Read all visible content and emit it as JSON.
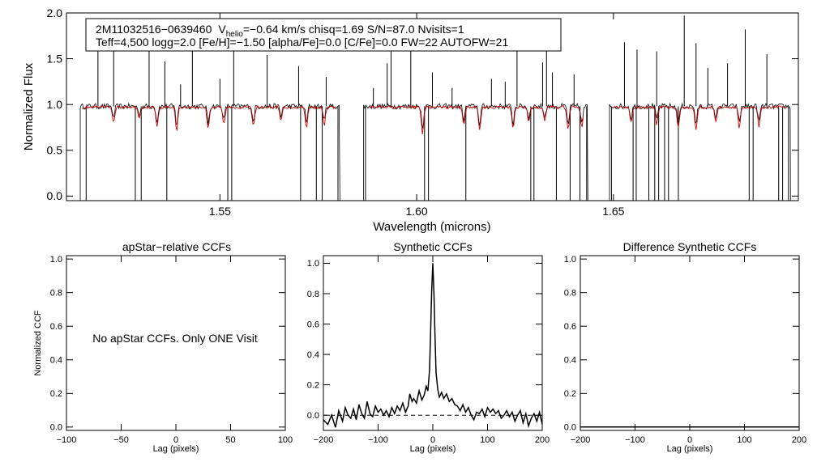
{
  "chart_data": [
    {
      "type": "line",
      "id": "spectrum",
      "xlabel": "Wavelength (microns)",
      "ylabel": "Normalized Flux",
      "xlim": [
        1.511,
        1.697
      ],
      "ylim": [
        -0.05,
        2.0
      ],
      "xticks": [
        1.55,
        1.6,
        1.65
      ],
      "xtick_labels": [
        "1.55",
        "1.60",
        "1.65"
      ],
      "yticks": [
        0.0,
        0.5,
        1.0,
        1.5,
        2.0
      ],
      "ytick_labels": [
        "0.0",
        "0.5",
        "1.0",
        "1.5",
        "2.0"
      ],
      "info_line1": {
        "star": "2M11032516−0639460",
        "v_prefix": "V",
        "v_sub": "helio",
        "v_rest": "=−0.64 km/s  chisq=1.69  S/N=87.0  Nvisits=1"
      },
      "info_line2": "Teff=4,500 logg=2.0 [Fe/H]=−1.50 [alpha/Fe]=0.0 [C/Fe]=0.0 FW=22 AUTOFW=21",
      "series": [
        {
          "name": "observed",
          "color": "#000000",
          "segments": [
            [
              1.5145,
              1.5805
            ],
            [
              1.5865,
              1.6435
            ],
            [
              1.649,
              1.695
            ]
          ],
          "continuum": 0.98,
          "absorption_lines": [
            [
              1.523,
              0.4
            ],
            [
              1.5295,
              0.3
            ],
            [
              1.534,
              0.5
            ],
            [
              1.539,
              0.6
            ],
            [
              1.547,
              0.55
            ],
            [
              1.551,
              0.45
            ],
            [
              1.5585,
              0.5
            ],
            [
              1.5655,
              0.35
            ],
            [
              1.572,
              0.55
            ],
            [
              1.5765,
              0.5
            ],
            [
              1.6015,
              0.7
            ],
            [
              1.612,
              0.45
            ],
            [
              1.616,
              0.6
            ],
            [
              1.6245,
              0.55
            ],
            [
              1.6285,
              0.4
            ],
            [
              1.6325,
              0.35
            ],
            [
              1.6385,
              0.6
            ],
            [
              1.642,
              0.55
            ],
            [
              1.6545,
              0.4
            ],
            [
              1.661,
              0.45
            ],
            [
              1.6665,
              0.55
            ],
            [
              1.671,
              0.6
            ],
            [
              1.676,
              0.4
            ],
            [
              1.682,
              0.55
            ],
            [
              1.687,
              0.5
            ]
          ],
          "drop_lines": [
            1.516,
            1.5285,
            1.53,
            1.5365,
            1.552,
            1.553,
            1.5705,
            1.5745,
            1.576,
            1.58,
            1.587,
            1.602,
            1.603,
            1.6125,
            1.629,
            1.6298,
            1.6355,
            1.639,
            1.6415,
            1.6432,
            1.6495,
            1.655,
            1.6558,
            1.659,
            1.6605,
            1.6615,
            1.663,
            1.664,
            1.6665,
            1.6845,
            1.6855,
            1.692,
            1.693,
            1.6945
          ],
          "emission_lines": [
            [
              1.519,
              1.82
            ],
            [
              1.523,
              1.78
            ],
            [
              1.532,
              1.73
            ],
            [
              1.536,
              1.47
            ],
            [
              1.54,
              1.22
            ],
            [
              1.543,
              1.62
            ],
            [
              1.55,
              1.28
            ],
            [
              1.5535,
              1.7
            ],
            [
              1.562,
              1.54
            ],
            [
              1.57,
              1.42
            ],
            [
              1.577,
              1.3
            ],
            [
              1.589,
              1.18
            ],
            [
              1.5925,
              1.45
            ],
            [
              1.5935,
              1.65
            ],
            [
              1.5985,
              1.78
            ],
            [
              1.604,
              1.35
            ],
            [
              1.609,
              1.18
            ],
            [
              1.619,
              1.28
            ],
            [
              1.6225,
              1.25
            ],
            [
              1.6255,
              1.62
            ],
            [
              1.632,
              1.46
            ],
            [
              1.633,
              1.75
            ],
            [
              1.6345,
              1.35
            ],
            [
              1.64,
              1.33
            ],
            [
              1.6528,
              1.68
            ],
            [
              1.656,
              1.6
            ],
            [
              1.661,
              1.58
            ],
            [
              1.668,
              1.97
            ],
            [
              1.671,
              1.67
            ],
            [
              1.674,
              1.4
            ],
            [
              1.679,
              1.45
            ],
            [
              1.6835,
              1.82
            ],
            [
              1.689,
              1.55
            ]
          ]
        },
        {
          "name": "synthetic",
          "color": "#cc0000",
          "segments": [
            [
              1.515,
              1.5795
            ],
            [
              1.588,
              1.6425
            ],
            [
              1.65,
              1.694
            ]
          ],
          "continuum": 0.97
        }
      ]
    },
    {
      "type": "line",
      "id": "apstar-ccf",
      "title": "apStar−relative CCFs",
      "ylabel": "Normalized CCF",
      "xlabel": "Lag (pixels)",
      "xlim": [
        -100,
        100
      ],
      "ylim": [
        -0.02,
        1.02
      ],
      "xticks": [
        -100,
        -50,
        0,
        50,
        100
      ],
      "xtick_labels": [
        "−100",
        "−50",
        "0",
        "50",
        "100"
      ],
      "yticks": [
        0.0,
        0.2,
        0.4,
        0.6,
        0.8,
        1.0
      ],
      "ytick_labels": [
        "0.0",
        "0.2",
        "0.4",
        "0.6",
        "0.8",
        "1.0"
      ],
      "annotation": "No apStar CCFs.  Only ONE Visit",
      "series": []
    },
    {
      "type": "line",
      "id": "synthetic-ccf",
      "title": "Synthetic CCFs",
      "xlabel": "Lag (pixels)",
      "xlim": [
        -200,
        200
      ],
      "ylim": [
        -0.1,
        1.05
      ],
      "xticks": [
        -200,
        -100,
        0,
        100,
        200
      ],
      "xtick_labels": [
        "−200",
        "−100",
        "0",
        "100",
        "200"
      ],
      "yticks": [
        0.0,
        0.2,
        0.4,
        0.6,
        0.8,
        1.0
      ],
      "ytick_labels": [
        "0.0",
        "0.2",
        "0.4",
        "0.6",
        "0.8",
        "1.0"
      ],
      "reference_line_y": 0.0,
      "series": [
        {
          "name": "ccf",
          "color": "#000000",
          "x": [
            -200,
            -192,
            -185,
            -178,
            -172,
            -165,
            -160,
            -155,
            -150,
            -145,
            -140,
            -135,
            -130,
            -125,
            -120,
            -115,
            -110,
            -105,
            -100,
            -95,
            -90,
            -85,
            -80,
            -75,
            -70,
            -65,
            -60,
            -55,
            -50,
            -45,
            -42,
            -38,
            -35,
            -30,
            -25,
            -20,
            -16,
            -12,
            -9,
            -6,
            -4,
            -2,
            0,
            2,
            4,
            6,
            9,
            12,
            16,
            20,
            25,
            30,
            35,
            40,
            45,
            50,
            55,
            60,
            65,
            70,
            75,
            80,
            85,
            90,
            95,
            100,
            105,
            110,
            115,
            120,
            125,
            130,
            135,
            140,
            145,
            150,
            155,
            160,
            165,
            170,
            175,
            180,
            185,
            190,
            195,
            200
          ],
          "y": [
            -0.03,
            -0.06,
            0.0,
            -0.08,
            0.03,
            -0.04,
            0.05,
            0.0,
            -0.02,
            0.04,
            -0.03,
            0.07,
            0.01,
            -0.02,
            0.09,
            0.01,
            -0.01,
            0.06,
            0.02,
            0.04,
            0.0,
            0.03,
            -0.01,
            0.05,
            0.01,
            0.06,
            0.03,
            0.08,
            0.02,
            0.06,
            0.14,
            0.09,
            0.11,
            0.08,
            0.16,
            0.1,
            0.13,
            0.19,
            0.16,
            0.3,
            0.55,
            0.82,
            1.0,
            0.8,
            0.52,
            0.28,
            0.17,
            0.12,
            0.15,
            0.11,
            0.14,
            0.09,
            0.11,
            0.07,
            0.06,
            0.03,
            0.07,
            0.02,
            0.05,
            0.0,
            -0.03,
            0.02,
            0.01,
            0.04,
            -0.01,
            0.05,
            0.02,
            0.04,
            0.01,
            0.03,
            -0.02,
            0.0,
            0.03,
            -0.01,
            0.02,
            -0.04,
            0.0,
            0.03,
            -0.05,
            0.01,
            -0.07,
            -0.02,
            0.01,
            -0.04,
            0.02,
            -0.06
          ]
        }
      ]
    },
    {
      "type": "line",
      "id": "difference-ccf",
      "title": "Difference Synthetic CCFs",
      "xlabel": "Lag (pixels)",
      "xlim": [
        -200,
        200
      ],
      "ylim": [
        -0.02,
        1.02
      ],
      "xticks": [
        -200,
        -100,
        0,
        100,
        200
      ],
      "xtick_labels": [
        "−200",
        "−100",
        "0",
        "100",
        "200"
      ],
      "yticks": [
        0.0,
        0.2,
        0.4,
        0.6,
        0.8,
        1.0
      ],
      "ytick_labels": [
        "0.0",
        "0.2",
        "0.4",
        "0.6",
        "0.8",
        "1.0"
      ],
      "series": [
        {
          "name": "difference",
          "color": "#000000",
          "x": [
            -200,
            200
          ],
          "y": [
            0.0,
            0.0
          ]
        }
      ]
    }
  ]
}
